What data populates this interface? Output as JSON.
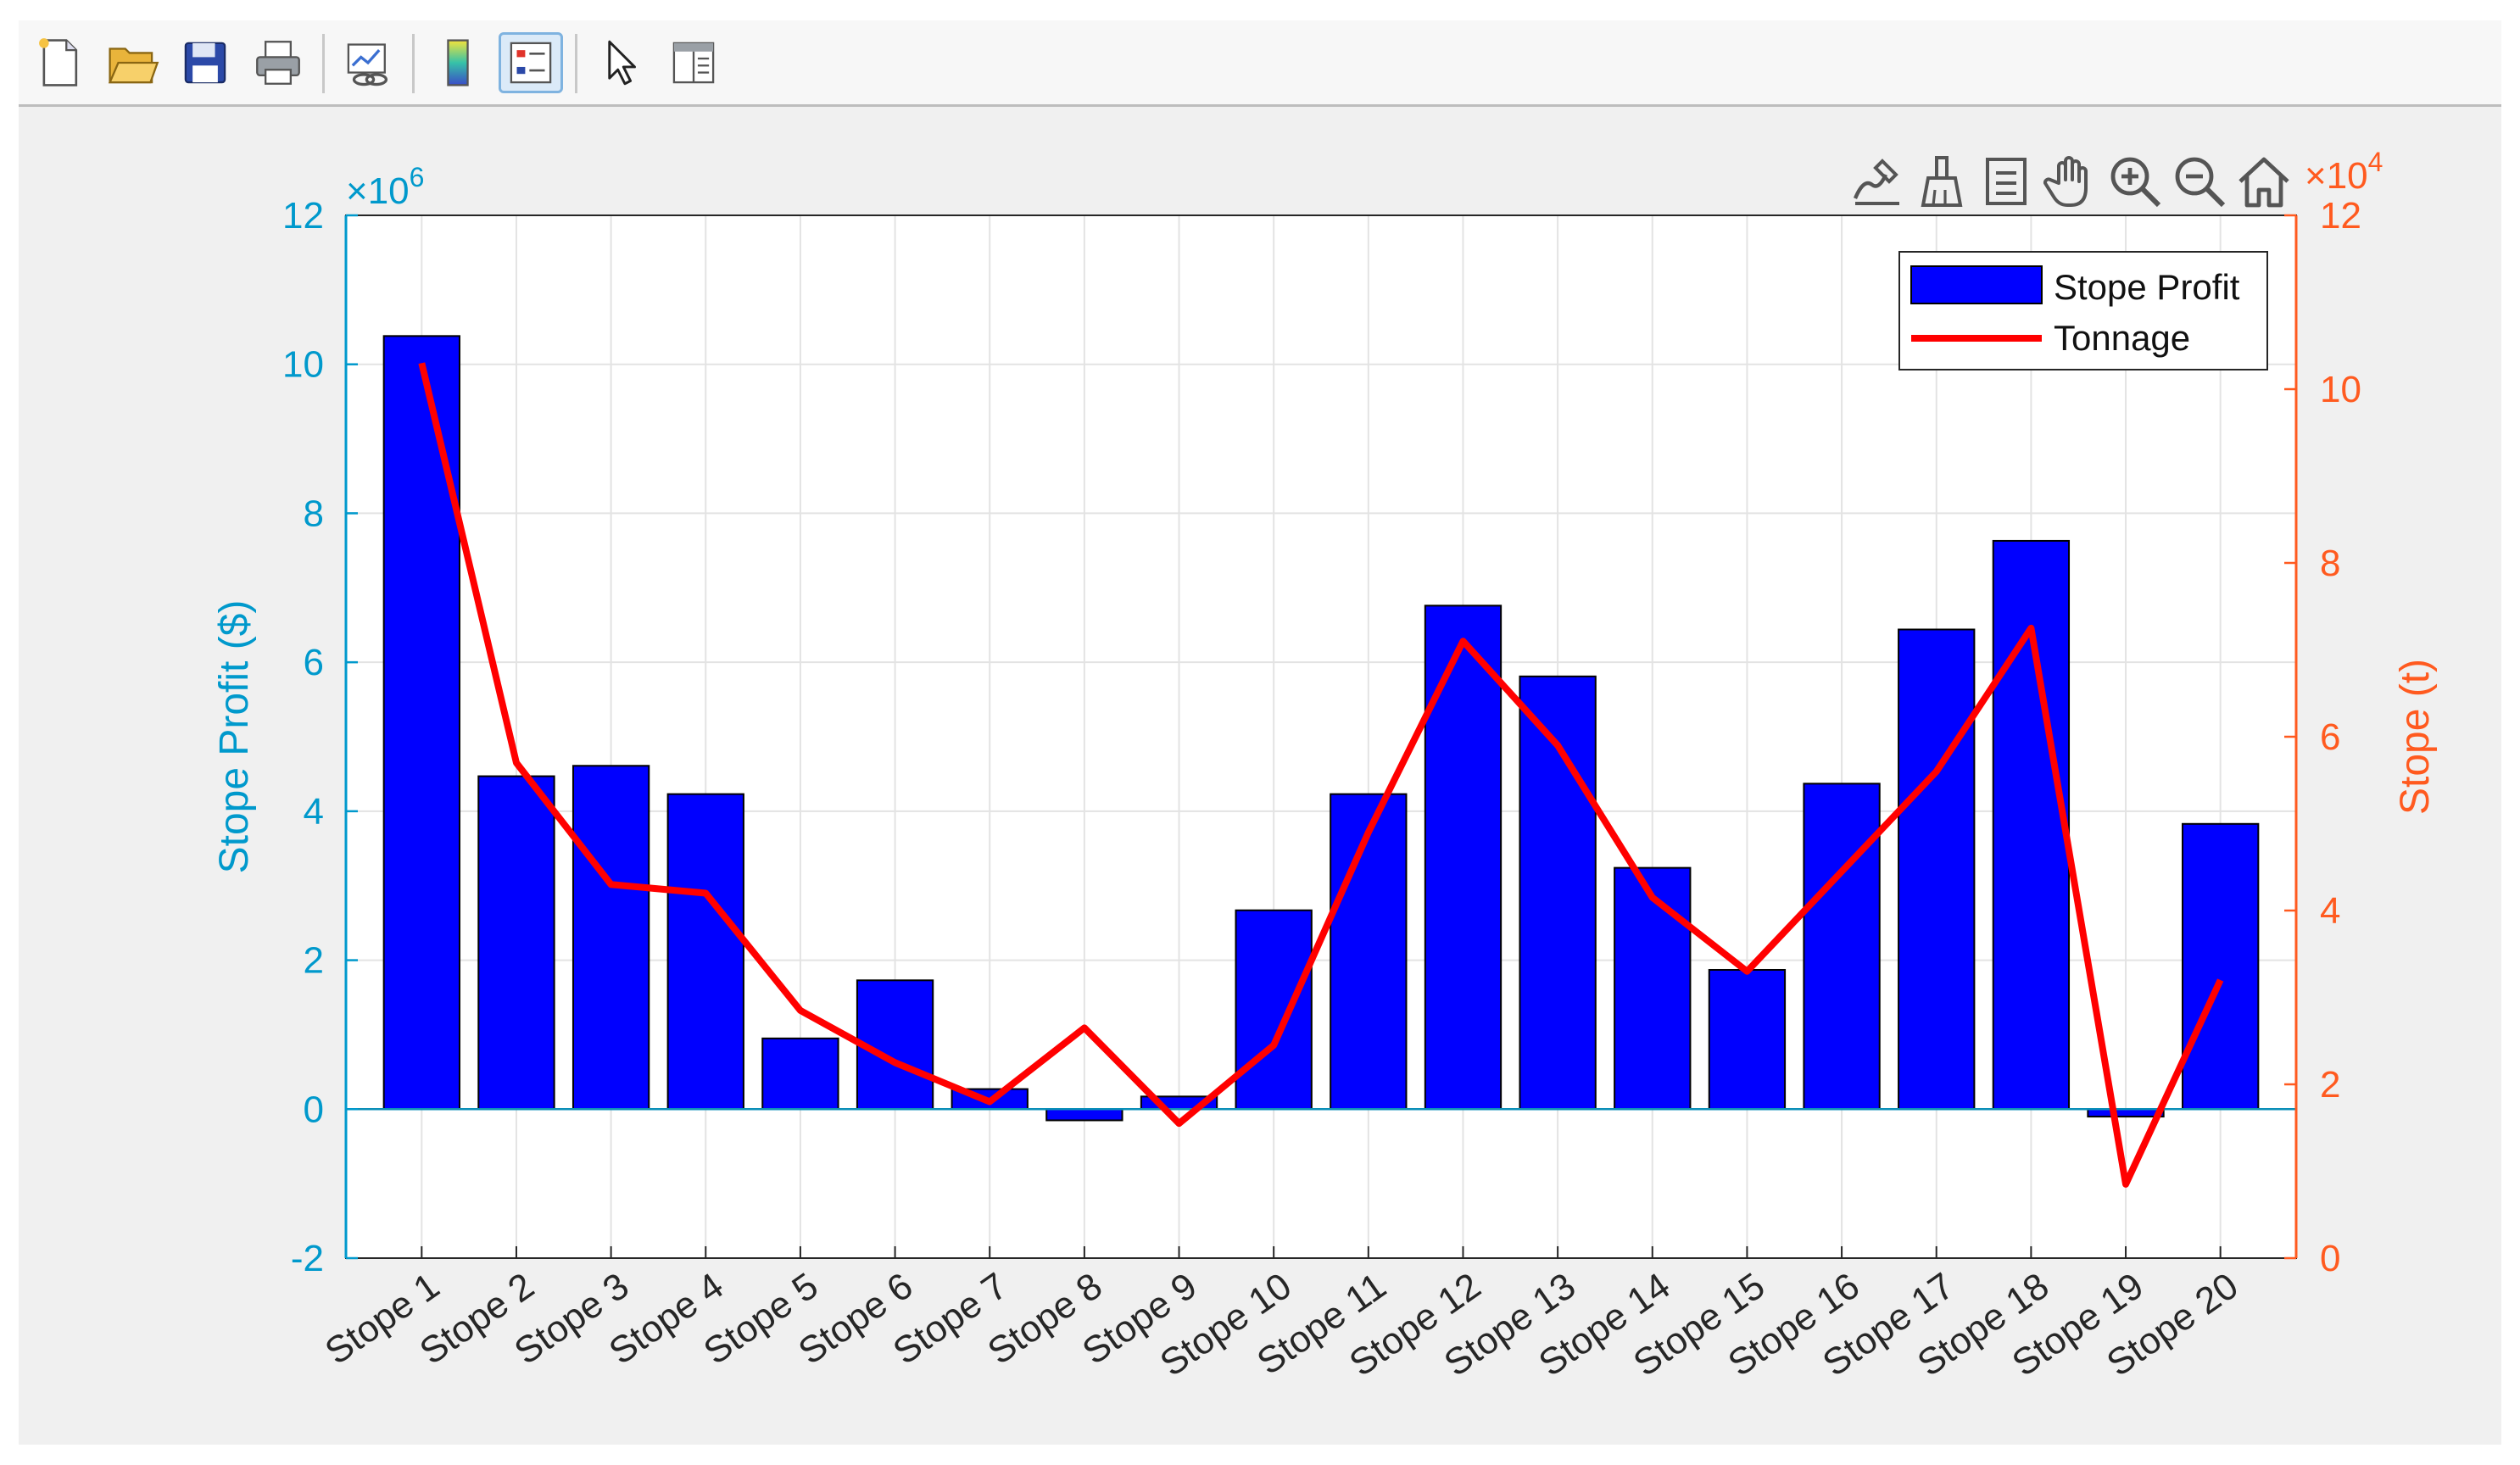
{
  "toolbar": {
    "buttons": [
      {
        "name": "new-figure-button",
        "icon": "new-document-icon"
      },
      {
        "name": "open-file-button",
        "icon": "folder-open-icon"
      },
      {
        "name": "save-figure-button",
        "icon": "floppy-disk-icon"
      },
      {
        "name": "print-figure-button",
        "icon": "printer-icon"
      },
      {
        "name": "link-plot-button",
        "icon": "link-plot-icon"
      },
      {
        "name": "insert-colorbar-button",
        "icon": "colorbar-icon"
      },
      {
        "name": "insert-legend-button",
        "icon": "legend-icon",
        "active": true
      },
      {
        "name": "edit-plot-button",
        "icon": "arrow-pointer-icon"
      },
      {
        "name": "property-inspector-button",
        "icon": "panel-icon"
      }
    ]
  },
  "axes_toolbar": {
    "buttons": [
      {
        "name": "data-tips-button",
        "icon": "data-tips-icon"
      },
      {
        "name": "brush-button",
        "icon": "brush-icon"
      },
      {
        "name": "export-button",
        "icon": "export-icon"
      },
      {
        "name": "pan-button",
        "icon": "hand-icon"
      },
      {
        "name": "zoom-in-button",
        "icon": "zoom-in-icon"
      },
      {
        "name": "zoom-out-button",
        "icon": "zoom-out-icon"
      },
      {
        "name": "restore-view-button",
        "icon": "home-icon"
      }
    ]
  },
  "chart_data": {
    "type": "bar",
    "categories": [
      "Stope 1",
      "Stope 2",
      "Stope 3",
      "Stope 4",
      "Stope 5",
      "Stope 6",
      "Stope 7",
      "Stope 8",
      "Stope 9",
      "Stope 10",
      "Stope 11",
      "Stope 12",
      "Stope 13",
      "Stope 14",
      "Stope 15",
      "Stope 16",
      "Stope 17",
      "Stope 18",
      "Stope 19",
      "Stope 20"
    ],
    "series": [
      {
        "name": "Stope Profit",
        "type": "bar",
        "axis": "left",
        "color": "#0000ff",
        "values": [
          10.38,
          4.47,
          4.61,
          4.23,
          0.95,
          1.73,
          0.27,
          -0.15,
          0.17,
          2.67,
          4.23,
          6.76,
          5.81,
          3.24,
          1.87,
          4.37,
          6.44,
          7.63,
          -0.1,
          3.83
        ]
      },
      {
        "name": "Tonnage",
        "type": "line",
        "axis": "right",
        "color": "#ff0000",
        "values": [
          10.3,
          5.7,
          4.3,
          4.2,
          2.85,
          2.25,
          1.8,
          2.65,
          1.55,
          2.45,
          4.9,
          7.1,
          5.9,
          4.15,
          3.3,
          4.45,
          5.6,
          7.25,
          0.85,
          3.2
        ]
      }
    ],
    "y_left": {
      "label": "Stope Profit ($)",
      "exponent": "×10",
      "exponent_power": "6",
      "lim": [
        -2,
        12
      ],
      "ticks": [
        -2,
        0,
        2,
        4,
        6,
        8,
        10,
        12
      ],
      "color": "#0099cc"
    },
    "y_right": {
      "label": "Stope (t)",
      "exponent": "×10",
      "exponent_power": "4",
      "lim": [
        0,
        12
      ],
      "ticks": [
        0,
        2,
        4,
        6,
        8,
        10,
        12
      ],
      "color": "#ff5a1f"
    },
    "grid": true,
    "legend": {
      "position": "top-right"
    }
  }
}
